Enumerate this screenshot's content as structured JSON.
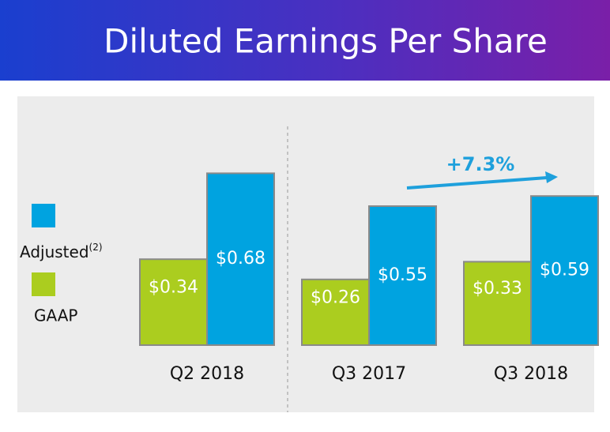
{
  "chart_data": {
    "type": "bar",
    "title": "Diluted Earnings Per Share",
    "categories": [
      "Q2 2018",
      "Q3 2017",
      "Q3 2018"
    ],
    "series": [
      {
        "name": "GAAP",
        "color": "#abcd1f",
        "values": [
          0.34,
          0.26,
          0.33
        ],
        "value_labels": [
          "$0.34",
          "$0.26",
          "$0.33"
        ]
      },
      {
        "name": "Adjusted",
        "name_note": "(2)",
        "color": "#00a3e0",
        "values": [
          0.68,
          0.55,
          0.59
        ],
        "value_labels": [
          "$0.68",
          "$0.55",
          "$0.59"
        ]
      }
    ],
    "annotation": "+7.3%"
  }
}
